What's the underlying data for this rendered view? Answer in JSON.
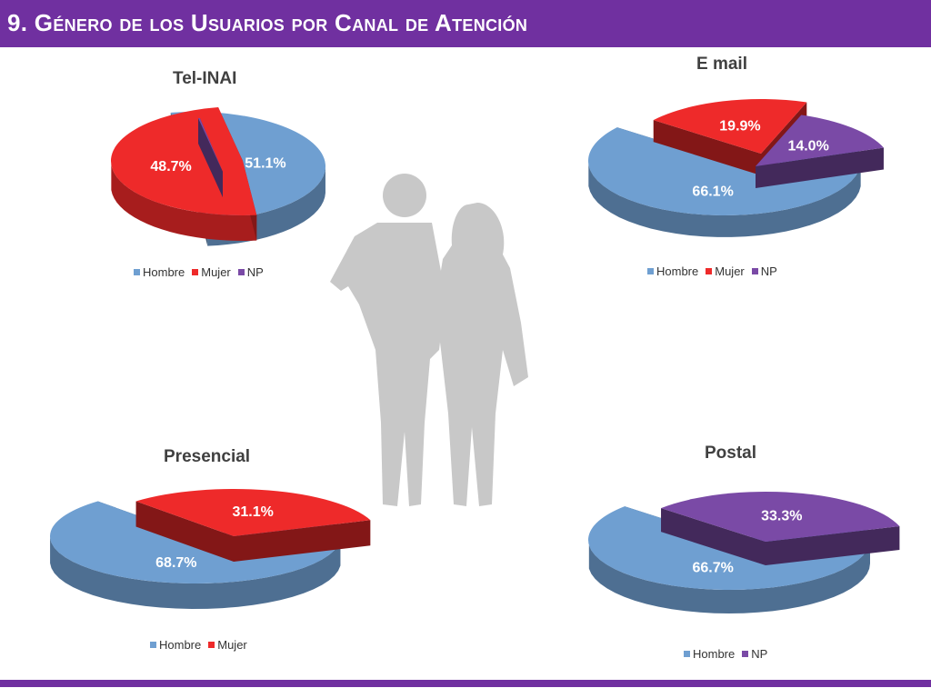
{
  "header": {
    "title": "9. Género de los Usuarios por Canal de Atención"
  },
  "colors": {
    "hombre": "#6f9fd1",
    "mujer": "#ee2a2a",
    "np": "#7a4aa6",
    "accent": "#7030a0"
  },
  "chart_data": [
    {
      "type": "pie",
      "title": "Tel-INAI",
      "slices": [
        {
          "label": "Hombre",
          "value": 51.1,
          "text": "51.1%"
        },
        {
          "label": "Mujer",
          "value": 48.7,
          "text": "48.7%"
        },
        {
          "label": "NP",
          "value": 0.2,
          "text": ""
        }
      ],
      "legend": [
        "Hombre",
        "Mujer",
        "NP"
      ]
    },
    {
      "type": "pie",
      "title": "E mail",
      "slices": [
        {
          "label": "Hombre",
          "value": 66.1,
          "text": "66.1%"
        },
        {
          "label": "Mujer",
          "value": 19.9,
          "text": "19.9%"
        },
        {
          "label": "NP",
          "value": 14.0,
          "text": "14.0%"
        }
      ],
      "legend": [
        "Hombre",
        "Mujer",
        "NP"
      ]
    },
    {
      "type": "pie",
      "title": "Presencial",
      "slices": [
        {
          "label": "Hombre",
          "value": 68.7,
          "text": "68.7%"
        },
        {
          "label": "Mujer",
          "value": 31.1,
          "text": "31.1%"
        }
      ],
      "legend": [
        "Hombre",
        "Mujer"
      ]
    },
    {
      "type": "pie",
      "title": "Postal",
      "slices": [
        {
          "label": "Hombre",
          "value": 66.7,
          "text": "66.7%"
        },
        {
          "label": "NP",
          "value": 33.3,
          "text": "33.3%"
        }
      ],
      "legend": [
        "Hombre",
        "NP"
      ]
    }
  ]
}
